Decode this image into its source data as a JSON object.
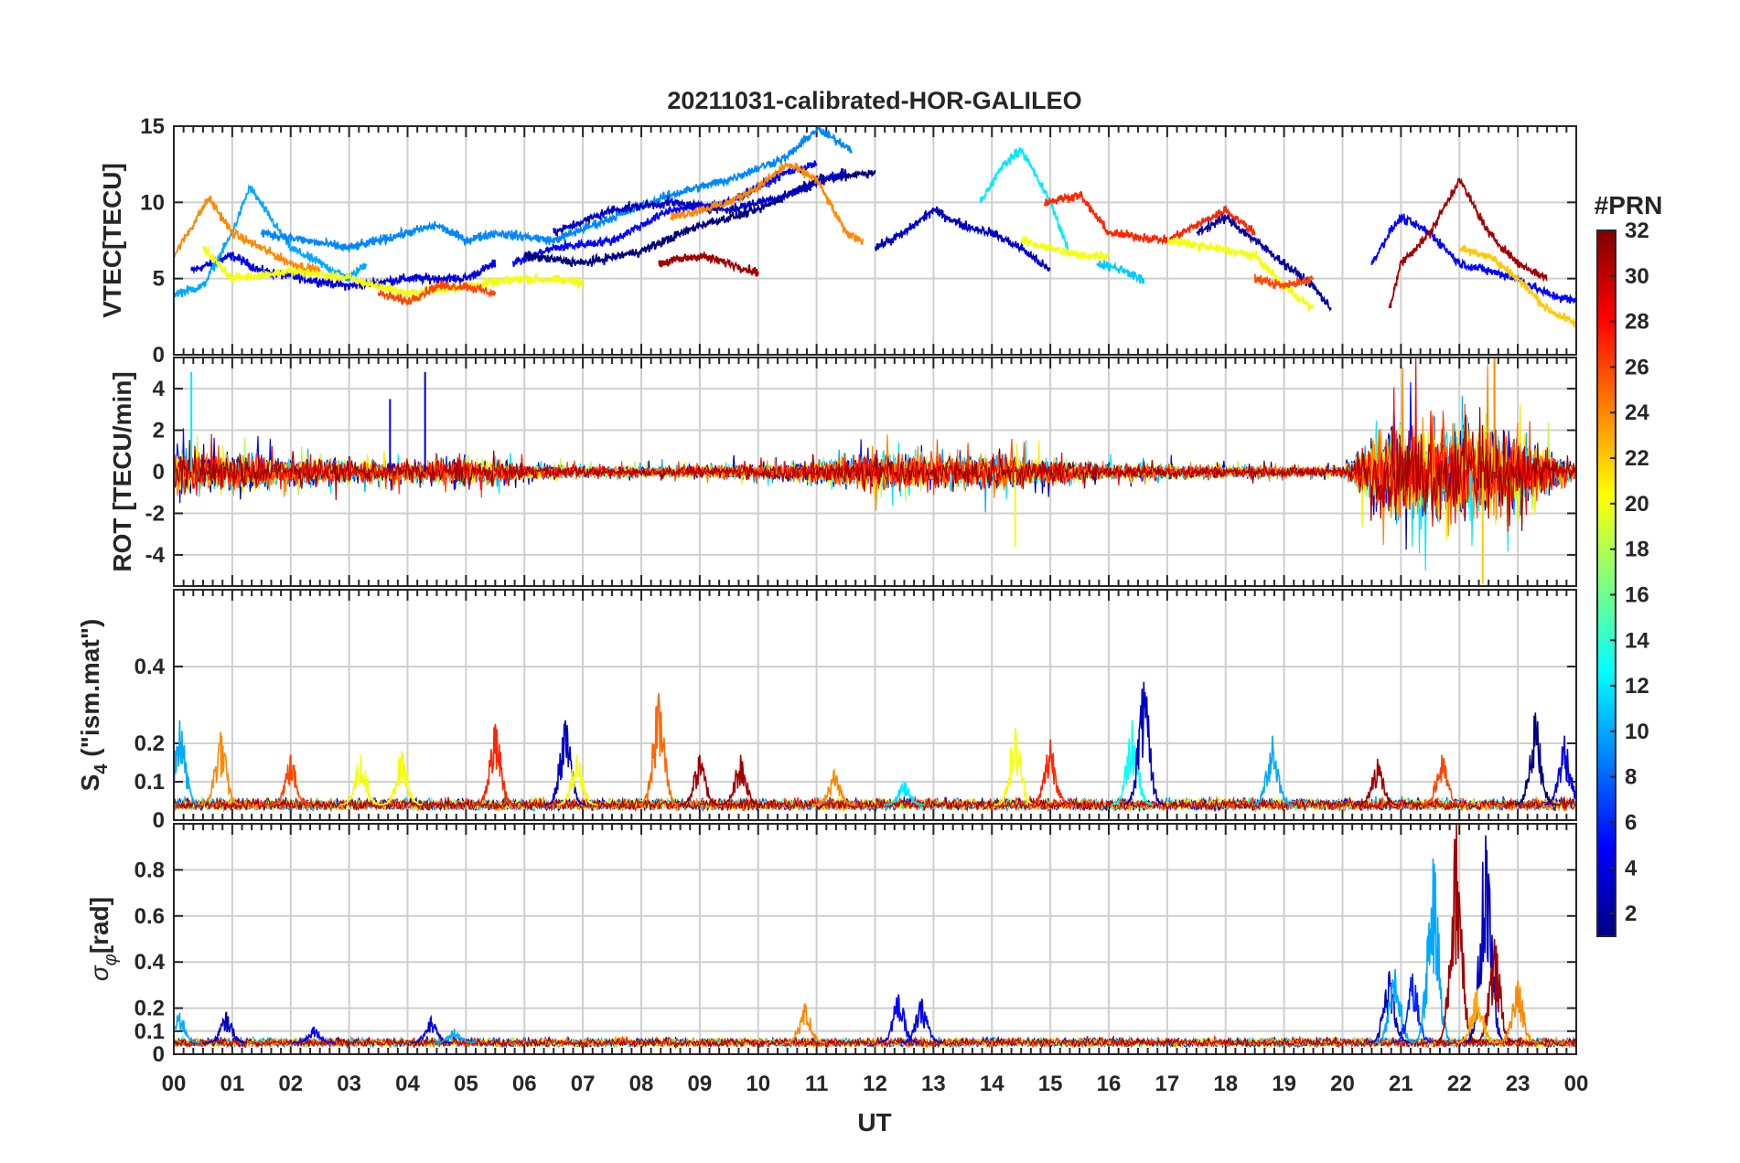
{
  "chart_data": {
    "type": "line",
    "title": "20211031-calibrated-HOR-GALILEO",
    "xlabel": "UT",
    "x_tick_labels": [
      "00",
      "01",
      "02",
      "03",
      "04",
      "05",
      "06",
      "07",
      "08",
      "09",
      "10",
      "11",
      "12",
      "13",
      "14",
      "15",
      "16",
      "17",
      "18",
      "19",
      "20",
      "21",
      "22",
      "23",
      "00"
    ],
    "xlim_hours": [
      0,
      24
    ],
    "colorbar": {
      "title": "#PRN",
      "tick_labels": [
        "2",
        "4",
        "6",
        "8",
        "10",
        "12",
        "14",
        "16",
        "18",
        "20",
        "22",
        "24",
        "26",
        "28",
        "30",
        "32"
      ],
      "range": [
        1,
        32
      ],
      "colormap": "jet",
      "stops": [
        "#00007f",
        "#0000ff",
        "#007fff",
        "#00ffff",
        "#7fff7f",
        "#ffff00",
        "#ff7f00",
        "#ff0000",
        "#7f0000"
      ]
    },
    "panels": [
      {
        "id": "vtec",
        "ylabel": "VTEC[TECU]",
        "ylim": [
          0,
          15
        ],
        "y_ticks": [
          0,
          5,
          10,
          15
        ],
        "y_tick_labels": [
          "0",
          "5",
          "10",
          "15"
        ],
        "grid": true,
        "series": [
          {
            "prn": 4,
            "x": [
              0.3,
              1.0,
              1.5,
              2.2,
              3.0,
              4.0,
              5.0,
              5.5
            ],
            "y": [
              5.5,
              6.5,
              5.5,
              5.0,
              4.5,
              5.0,
              5.0,
              6.0
            ]
          },
          {
            "prn": 10,
            "x": [
              0.0,
              0.5,
              1.0,
              1.3,
              2.0,
              3.0,
              3.3
            ],
            "y": [
              4.0,
              4.5,
              8.0,
              11.0,
              7.0,
              5.0,
              6.0
            ]
          },
          {
            "prn": 24,
            "x": [
              0.0,
              0.4,
              0.6,
              1.0,
              1.5,
              2.0,
              2.5
            ],
            "y": [
              6.5,
              9.0,
              10.3,
              8.0,
              7.0,
              6.0,
              5.5
            ]
          },
          {
            "prn": 20,
            "x": [
              0.5,
              1.0,
              2.0,
              3.0,
              4.0,
              5.0,
              6.0,
              7.0
            ],
            "y": [
              7.0,
              5.0,
              5.5,
              5.0,
              4.0,
              4.5,
              5.0,
              4.8
            ]
          },
          {
            "prn": 26,
            "x": [
              3.5,
              4.0,
              4.5,
              5.0,
              5.5
            ],
            "y": [
              4.0,
              3.5,
              4.5,
              4.5,
              4.0
            ]
          },
          {
            "prn": 9,
            "x": [
              1.5,
              3.0,
              4.5,
              5.0,
              5.5,
              6.5,
              7.5,
              8.5,
              9.5,
              10.5,
              11.0,
              11.6
            ],
            "y": [
              8.0,
              7.0,
              8.5,
              7.5,
              8.0,
              7.5,
              9.0,
              10.5,
              11.5,
              13.0,
              14.8,
              13.5
            ]
          },
          {
            "prn": 5,
            "x": [
              5.8,
              6.5,
              7.5,
              8.5,
              9.5,
              10.5,
              11.0
            ],
            "y": [
              6.0,
              7.0,
              7.5,
              9.5,
              10.0,
              12.0,
              12.5
            ]
          },
          {
            "prn": 1,
            "x": [
              6.0,
              7.0,
              8.0,
              9.0,
              10.0,
              11.0,
              12.0
            ],
            "y": [
              6.5,
              6.0,
              6.8,
              8.5,
              9.5,
              11.5,
              12.0
            ]
          },
          {
            "prn": 3,
            "x": [
              6.5,
              7.5,
              8.5,
              9.5,
              10.5,
              11.5
            ],
            "y": [
              8.0,
              9.5,
              10.0,
              9.5,
              10.5,
              12.0
            ]
          },
          {
            "prn": 31,
            "x": [
              8.3,
              9.0,
              9.5,
              10.0
            ],
            "y": [
              6.0,
              6.5,
              6.0,
              5.4
            ]
          },
          {
            "prn": 24,
            "x": [
              8.5,
              9.5,
              10.0,
              10.5,
              11.0,
              11.5,
              11.8
            ],
            "y": [
              9.0,
              10.0,
              11.0,
              12.5,
              11.5,
              8.0,
              7.5
            ]
          },
          {
            "prn": 3,
            "x": [
              12.0,
              12.5,
              13.0,
              13.5,
              14.0,
              14.5,
              15.0
            ],
            "y": [
              7.0,
              8.0,
              9.5,
              8.5,
              8.0,
              7.0,
              5.5
            ]
          },
          {
            "prn": 12,
            "x": [
              13.8,
              14.2,
              14.5,
              15.0,
              15.3
            ],
            "y": [
              10.0,
              12.5,
              13.5,
              10.0,
              7.0
            ]
          },
          {
            "prn": 20,
            "x": [
              14.5,
              15.0,
              15.5,
              16.0
            ],
            "y": [
              7.5,
              7.0,
              6.5,
              6.5
            ]
          },
          {
            "prn": 27,
            "x": [
              14.9,
              15.5,
              16.0,
              17.0,
              18.0,
              18.5
            ],
            "y": [
              10.0,
              10.5,
              8.0,
              7.5,
              9.5,
              8.0
            ]
          },
          {
            "prn": 11,
            "x": [
              15.8,
              16.3,
              16.6
            ],
            "y": [
              6.0,
              5.5,
              4.8
            ]
          },
          {
            "prn": 2,
            "x": [
              17.5,
              18.0,
              18.5,
              19.0,
              19.5,
              19.8
            ],
            "y": [
              8.0,
              9.0,
              7.5,
              6.0,
              4.5,
              3.0
            ]
          },
          {
            "prn": 20,
            "x": [
              17.0,
              17.8,
              18.5,
              19.0,
              19.5
            ],
            "y": [
              7.5,
              7.0,
              6.5,
              4.5,
              3.0
            ]
          },
          {
            "prn": 26,
            "x": [
              18.5,
              19.0,
              19.5
            ],
            "y": [
              5.0,
              4.5,
              5.0
            ]
          },
          {
            "prn": 5,
            "x": [
              20.5,
              20.8,
              21.0,
              21.5,
              22.0,
              22.5,
              23.0,
              23.5,
              24.0
            ],
            "y": [
              6.0,
              8.0,
              9.0,
              8.0,
              6.0,
              5.5,
              5.0,
              4.0,
              3.5
            ]
          },
          {
            "prn": 31,
            "x": [
              20.8,
              21.0,
              21.5,
              22.0,
              22.5,
              23.0,
              23.5
            ],
            "y": [
              3.0,
              6.0,
              8.0,
              11.5,
              8.0,
              6.0,
              5.0
            ]
          },
          {
            "prn": 22,
            "x": [
              22.0,
              22.5,
              23.0,
              23.5,
              24.0
            ],
            "y": [
              7.0,
              6.5,
              5.0,
              3.0,
              2.0
            ]
          }
        ]
      },
      {
        "id": "rot",
        "ylabel": "ROT [TECU/min]",
        "ylim": [
          -5.5,
          5.5
        ],
        "y_ticks": [
          -4,
          -2,
          0,
          2,
          4
        ],
        "y_tick_labels": [
          "-4",
          "-2",
          "0",
          "2",
          "4"
        ],
        "grid": true,
        "activity_envelope": {
          "x": [
            0,
            1,
            2,
            3,
            4,
            5,
            6,
            7,
            8,
            9,
            10,
            11,
            12,
            13,
            14,
            15,
            16,
            17,
            18,
            19,
            20,
            20.7,
            21,
            22,
            23,
            24
          ],
          "amplitude": [
            1.8,
            1.5,
            1.2,
            0.9,
            0.9,
            1.2,
            0.6,
            0.5,
            0.4,
            0.5,
            0.6,
            1.0,
            1.5,
            1.3,
            1.4,
            1.0,
            0.6,
            0.6,
            0.5,
            0.4,
            0.4,
            3.5,
            3.8,
            4.2,
            3.0,
            0.6
          ]
        },
        "spikes": [
          {
            "prn": 12,
            "x": 0.3,
            "y": 4.8
          },
          {
            "prn": 3,
            "x": 4.3,
            "y": 4.8
          },
          {
            "prn": 4,
            "x": 3.7,
            "y": 3.5
          },
          {
            "prn": 24,
            "x": 22.6,
            "y": 5.5
          },
          {
            "prn": 20,
            "x": 14.4,
            "y": -3.6
          },
          {
            "prn": 22,
            "x": 22.4,
            "y": -5.4
          }
        ]
      },
      {
        "id": "s4",
        "ylabel": "S4 (\"ism.mat\")",
        "ylabel_main": "S",
        "ylabel_sub": "4",
        "ylabel_rest": " (\"ism.mat\")",
        "ylim": [
          0,
          0.6
        ],
        "y_ticks": [
          0,
          0.1,
          0.2,
          0.4
        ],
        "y_tick_labels": [
          "0",
          "0.1",
          "0.2",
          "0.4"
        ],
        "grid": true,
        "baseline": 0.04,
        "bursts": [
          {
            "prn": 10,
            "x": 0.1,
            "y": 0.26
          },
          {
            "prn": 24,
            "x": 0.8,
            "y": 0.23
          },
          {
            "prn": 26,
            "x": 2.0,
            "y": 0.17
          },
          {
            "prn": 20,
            "x": 3.2,
            "y": 0.17
          },
          {
            "prn": 20,
            "x": 3.9,
            "y": 0.18
          },
          {
            "prn": 27,
            "x": 5.5,
            "y": 0.25
          },
          {
            "prn": 3,
            "x": 6.7,
            "y": 0.26
          },
          {
            "prn": 20,
            "x": 6.9,
            "y": 0.17
          },
          {
            "prn": 25,
            "x": 8.3,
            "y": 0.33
          },
          {
            "prn": 31,
            "x": 9.0,
            "y": 0.17
          },
          {
            "prn": 31,
            "x": 9.7,
            "y": 0.17
          },
          {
            "prn": 24,
            "x": 11.3,
            "y": 0.13
          },
          {
            "prn": 12,
            "x": 12.5,
            "y": 0.1
          },
          {
            "prn": 20,
            "x": 14.4,
            "y": 0.24
          },
          {
            "prn": 27,
            "x": 15.0,
            "y": 0.21
          },
          {
            "prn": 13,
            "x": 16.4,
            "y": 0.26
          },
          {
            "prn": 3,
            "x": 16.6,
            "y": 0.36
          },
          {
            "prn": 10,
            "x": 18.8,
            "y": 0.22
          },
          {
            "prn": 31,
            "x": 20.6,
            "y": 0.16
          },
          {
            "prn": 26,
            "x": 21.7,
            "y": 0.17
          },
          {
            "prn": 1,
            "x": 23.3,
            "y": 0.28
          },
          {
            "prn": 4,
            "x": 23.8,
            "y": 0.22
          }
        ]
      },
      {
        "id": "sigma_phi",
        "ylabel": "σφ[rad]",
        "ylabel_main": "σ",
        "ylabel_sub": "φ",
        "ylabel_rest": "[rad]",
        "ylim": [
          0,
          1.0
        ],
        "y_ticks": [
          0,
          0.1,
          0.2,
          0.4,
          0.6,
          0.8
        ],
        "y_tick_labels": [
          "0",
          "0.1",
          "0.2",
          "0.4",
          "0.6",
          "0.8"
        ],
        "grid": true,
        "baseline": 0.05,
        "bursts": [
          {
            "prn": 10,
            "x": 0.1,
            "y": 0.18
          },
          {
            "prn": 3,
            "x": 0.9,
            "y": 0.18
          },
          {
            "prn": 5,
            "x": 2.4,
            "y": 0.12
          },
          {
            "prn": 4,
            "x": 4.4,
            "y": 0.16
          },
          {
            "prn": 10,
            "x": 4.8,
            "y": 0.11
          },
          {
            "prn": 24,
            "x": 10.8,
            "y": 0.22
          },
          {
            "prn": 5,
            "x": 12.4,
            "y": 0.26
          },
          {
            "prn": 4,
            "x": 12.8,
            "y": 0.24
          },
          {
            "prn": 3,
            "x": 20.8,
            "y": 0.36
          },
          {
            "prn": 10,
            "x": 20.9,
            "y": 0.37
          },
          {
            "prn": 6,
            "x": 21.2,
            "y": 0.35
          },
          {
            "prn": 10,
            "x": 21.55,
            "y": 0.85
          },
          {
            "prn": 31,
            "x": 21.95,
            "y": 1.0
          },
          {
            "prn": 3,
            "x": 22.45,
            "y": 0.95
          },
          {
            "prn": 31,
            "x": 22.6,
            "y": 0.5
          },
          {
            "prn": 24,
            "x": 23.0,
            "y": 0.32
          },
          {
            "prn": 23,
            "x": 22.3,
            "y": 0.28
          }
        ]
      }
    ]
  }
}
